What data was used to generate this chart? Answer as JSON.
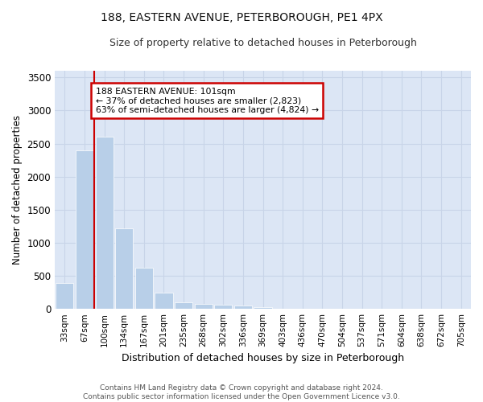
{
  "title": "188, EASTERN AVENUE, PETERBOROUGH, PE1 4PX",
  "subtitle": "Size of property relative to detached houses in Peterborough",
  "xlabel": "Distribution of detached houses by size in Peterborough",
  "ylabel": "Number of detached properties",
  "footer_line1": "Contains HM Land Registry data © Crown copyright and database right 2024.",
  "footer_line2": "Contains public sector information licensed under the Open Government Licence v3.0.",
  "categories": [
    "33sqm",
    "67sqm",
    "100sqm",
    "134sqm",
    "167sqm",
    "201sqm",
    "235sqm",
    "268sqm",
    "302sqm",
    "336sqm",
    "369sqm",
    "403sqm",
    "436sqm",
    "470sqm",
    "504sqm",
    "537sqm",
    "571sqm",
    "604sqm",
    "638sqm",
    "672sqm",
    "705sqm"
  ],
  "values": [
    390,
    2400,
    2600,
    1220,
    620,
    250,
    100,
    75,
    65,
    50,
    30,
    0,
    0,
    0,
    0,
    0,
    0,
    0,
    0,
    0,
    0
  ],
  "bar_color": "#b8cfe8",
  "bar_edge_color": "#b8cfe8",
  "grid_color": "#c8d4e8",
  "bg_color": "#dce6f5",
  "annotation_box_color": "#cc0000",
  "property_line_color": "#cc0000",
  "property_bin_index": 2,
  "annotation_text_line1": "188 EASTERN AVENUE: 101sqm",
  "annotation_text_line2": "← 37% of detached houses are smaller (2,823)",
  "annotation_text_line3": "63% of semi-detached houses are larger (4,824) →",
  "ylim": [
    0,
    3600
  ],
  "yticks": [
    0,
    500,
    1000,
    1500,
    2000,
    2500,
    3000,
    3500
  ]
}
